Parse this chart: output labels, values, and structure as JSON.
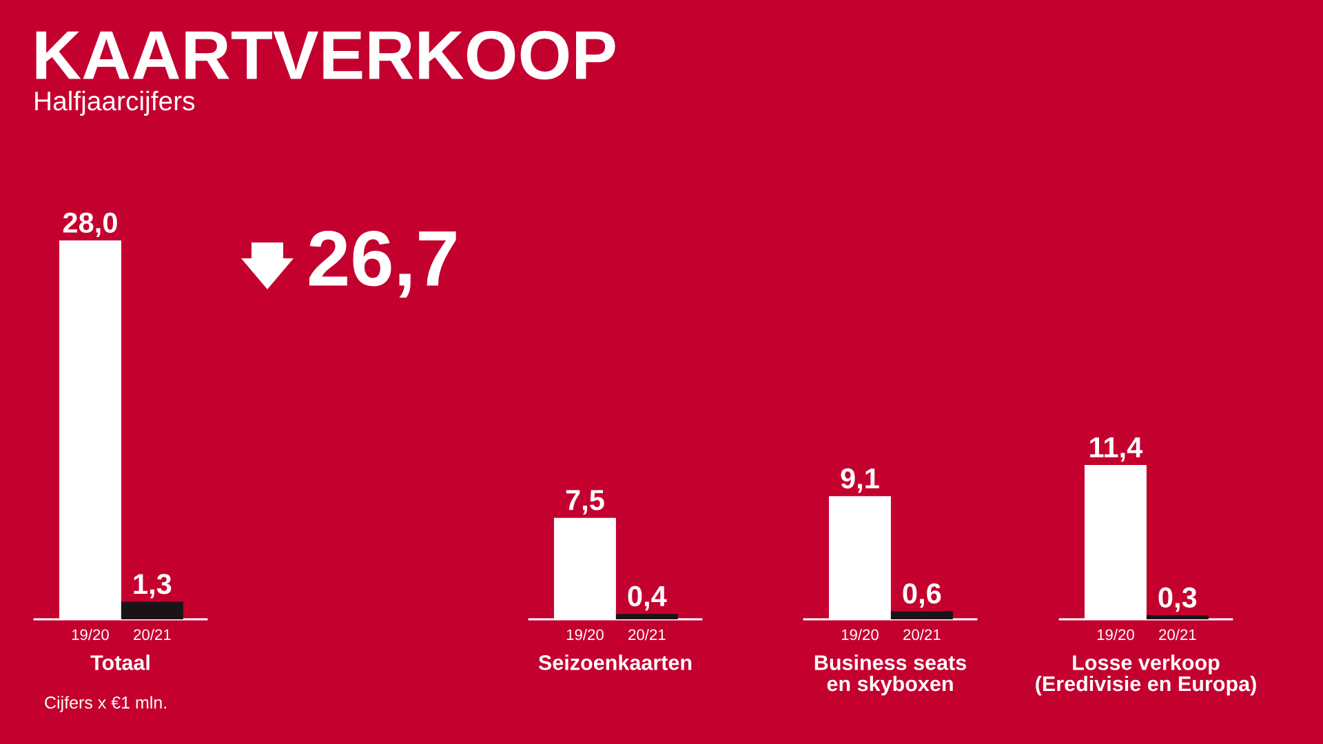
{
  "chart_data": [
    {
      "type": "bar",
      "title": "KAARTVERKOOP",
      "subtitle": "Halfjaarcijfers",
      "xlabel": "Totaal",
      "categories": [
        "19/20",
        "20/21"
      ],
      "values": [
        28.0,
        1.3
      ],
      "value_labels": [
        "28,0",
        "1,3"
      ],
      "colors": [
        "#ffffff",
        "#1a1418"
      ],
      "annotations": [
        "26,7",
        "Cijfers x €1 mln."
      ],
      "grid": false,
      "legend": false
    },
    {
      "type": "bar",
      "xlabel": "Seizoenkaarten",
      "categories": [
        "19/20",
        "20/21"
      ],
      "values": [
        7.5,
        0.4
      ],
      "value_labels": [
        "7,5",
        "0,4"
      ],
      "colors": [
        "#ffffff",
        "#1a1418"
      ],
      "grid": false,
      "legend": false
    },
    {
      "type": "bar",
      "xlabel": "Business seats\nen skyboxen",
      "categories": [
        "19/20",
        "20/21"
      ],
      "values": [
        9.1,
        0.6
      ],
      "value_labels": [
        "9,1",
        "0,6"
      ],
      "colors": [
        "#ffffff",
        "#1a1418"
      ],
      "grid": false,
      "legend": false
    },
    {
      "type": "bar",
      "xlabel": "Losse verkoop\n(Eredivisie en Europa)",
      "categories": [
        "19/20",
        "20/21"
      ],
      "values": [
        11.4,
        0.3
      ],
      "value_labels": [
        "11,4",
        "0,3"
      ],
      "colors": [
        "#ffffff",
        "#1a1418"
      ],
      "grid": false,
      "legend": false
    }
  ]
}
